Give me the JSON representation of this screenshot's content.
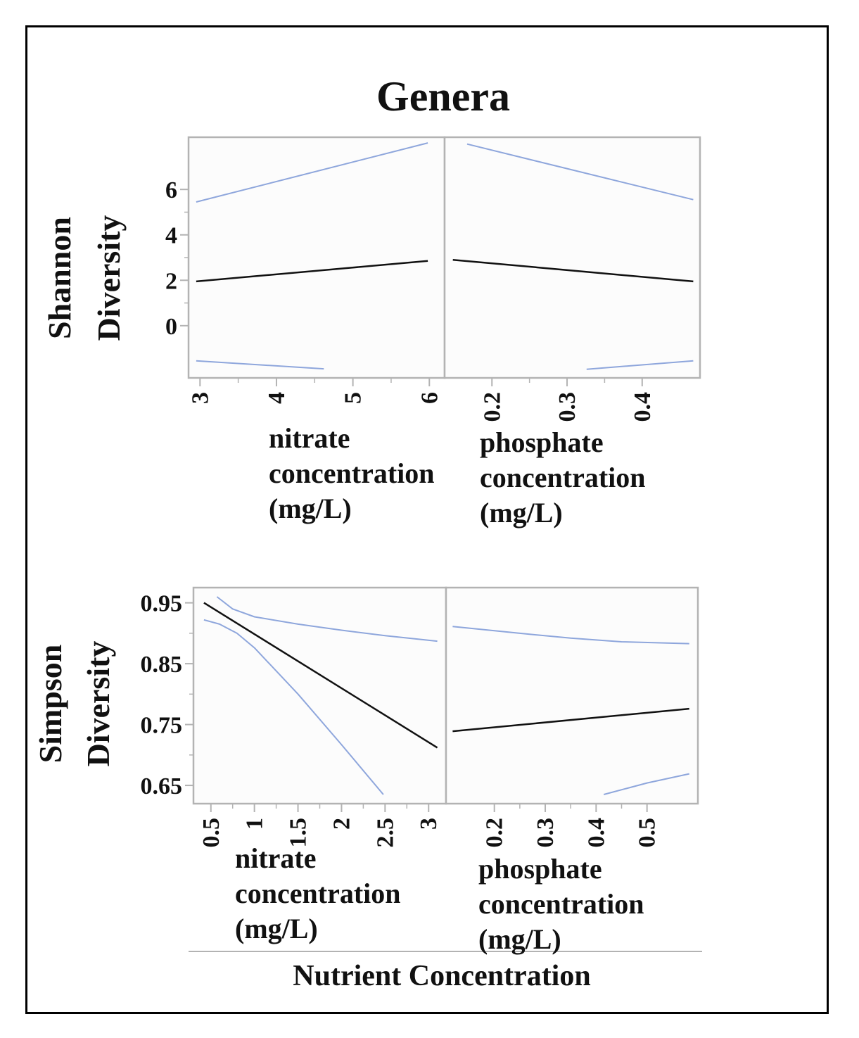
{
  "figure": {
    "title": "Genera",
    "bottom_label": "Nutrient Concentration"
  },
  "colors": {
    "fit": "#111111",
    "ci": "#8ea6dc",
    "frame": "#b3b3b3",
    "panel_bg": "#fcfcfc",
    "text": "#111111"
  },
  "chart_data": [
    {
      "type": "line",
      "row": "shannon",
      "ylabel": [
        "Shannon",
        "Diversity"
      ],
      "yticks": [
        0,
        2,
        4,
        6
      ],
      "ylim": [
        -2.3,
        8.3
      ],
      "grid": false,
      "panels": [
        {
          "xlabel": [
            "nitrate",
            "concentration",
            "(mg/L)"
          ],
          "xticks": [
            3,
            4,
            5,
            6
          ],
          "xtick_labels": [
            "3",
            "4",
            "5",
            "6"
          ],
          "xlim": [
            2.85,
            6.2
          ],
          "series": [
            {
              "role": "fit",
              "x": [
                2.95,
                5.98
              ],
              "y": [
                1.95,
                2.85
              ]
            },
            {
              "role": "upper",
              "x": [
                2.95,
                5.98
              ],
              "y": [
                5.45,
                8.05
              ]
            },
            {
              "role": "lower",
              "x": [
                2.95,
                4.62
              ],
              "y": [
                -1.55,
                -1.9
              ]
            }
          ]
        },
        {
          "xlabel": [
            "phosphate",
            "concentration",
            "(mg/L)"
          ],
          "xticks": [
            0.2,
            0.3,
            0.4
          ],
          "xtick_labels": [
            "0.2",
            "0.3",
            "0.4"
          ],
          "xlim": [
            0.137,
            0.477
          ],
          "series": [
            {
              "role": "fit",
              "x": [
                0.148,
                0.468
              ],
              "y": [
                2.9,
                1.95
              ]
            },
            {
              "role": "upper",
              "x": [
                0.167,
                0.468
              ],
              "y": [
                8.0,
                5.55
              ]
            },
            {
              "role": "lower",
              "x": [
                0.326,
                0.468
              ],
              "y": [
                -1.92,
                -1.55
              ]
            }
          ]
        }
      ]
    },
    {
      "type": "line",
      "row": "simpson",
      "ylabel": [
        "Simpson",
        "Diversity"
      ],
      "yticks": [
        0.65,
        0.75,
        0.85,
        0.95
      ],
      "ytick_labels": [
        "0.65",
        "0.75",
        "0.85",
        "0.95"
      ],
      "ylim": [
        0.62,
        0.975
      ],
      "grid": false,
      "panels": [
        {
          "xlabel": [
            "nitrate",
            "concentration",
            "(mg/L)"
          ],
          "xticks": [
            0.5,
            1,
            1.5,
            2,
            2.5,
            3
          ],
          "xtick_labels": [
            "0.5",
            "1",
            "1.5",
            "2",
            "2.5",
            "3"
          ],
          "xlim": [
            0.3,
            3.2
          ],
          "series": [
            {
              "role": "fit",
              "x": [
                0.42,
                3.1
              ],
              "y": [
                0.95,
                0.712
              ]
            },
            {
              "role": "upper",
              "x": [
                0.57,
                0.75,
                1.0,
                1.5,
                2.0,
                2.5,
                3.1
              ],
              "y": [
                0.96,
                0.94,
                0.927,
                0.915,
                0.905,
                0.896,
                0.887
              ]
            },
            {
              "role": "lower",
              "x": [
                0.42,
                0.6,
                0.8,
                1.0,
                1.5,
                2.0,
                2.48
              ],
              "y": [
                0.922,
                0.915,
                0.9,
                0.876,
                0.8,
                0.717,
                0.635
              ]
            }
          ]
        },
        {
          "xlabel": [
            "phosphate",
            "concentration",
            "(mg/L)"
          ],
          "xticks": [
            0.2,
            0.3,
            0.4,
            0.5
          ],
          "xtick_labels": [
            "0.2",
            "0.3",
            "0.4",
            "0.5"
          ],
          "xlim": [
            0.105,
            0.6
          ],
          "series": [
            {
              "role": "fit",
              "x": [
                0.118,
                0.583
              ],
              "y": [
                0.739,
                0.776
              ]
            },
            {
              "role": "upper",
              "x": [
                0.118,
                0.25,
                0.35,
                0.45,
                0.583
              ],
              "y": [
                0.911,
                0.9,
                0.892,
                0.886,
                0.883
              ]
            },
            {
              "role": "lower",
              "x": [
                0.415,
                0.5,
                0.583
              ],
              "y": [
                0.635,
                0.654,
                0.669
              ]
            }
          ]
        }
      ]
    }
  ]
}
